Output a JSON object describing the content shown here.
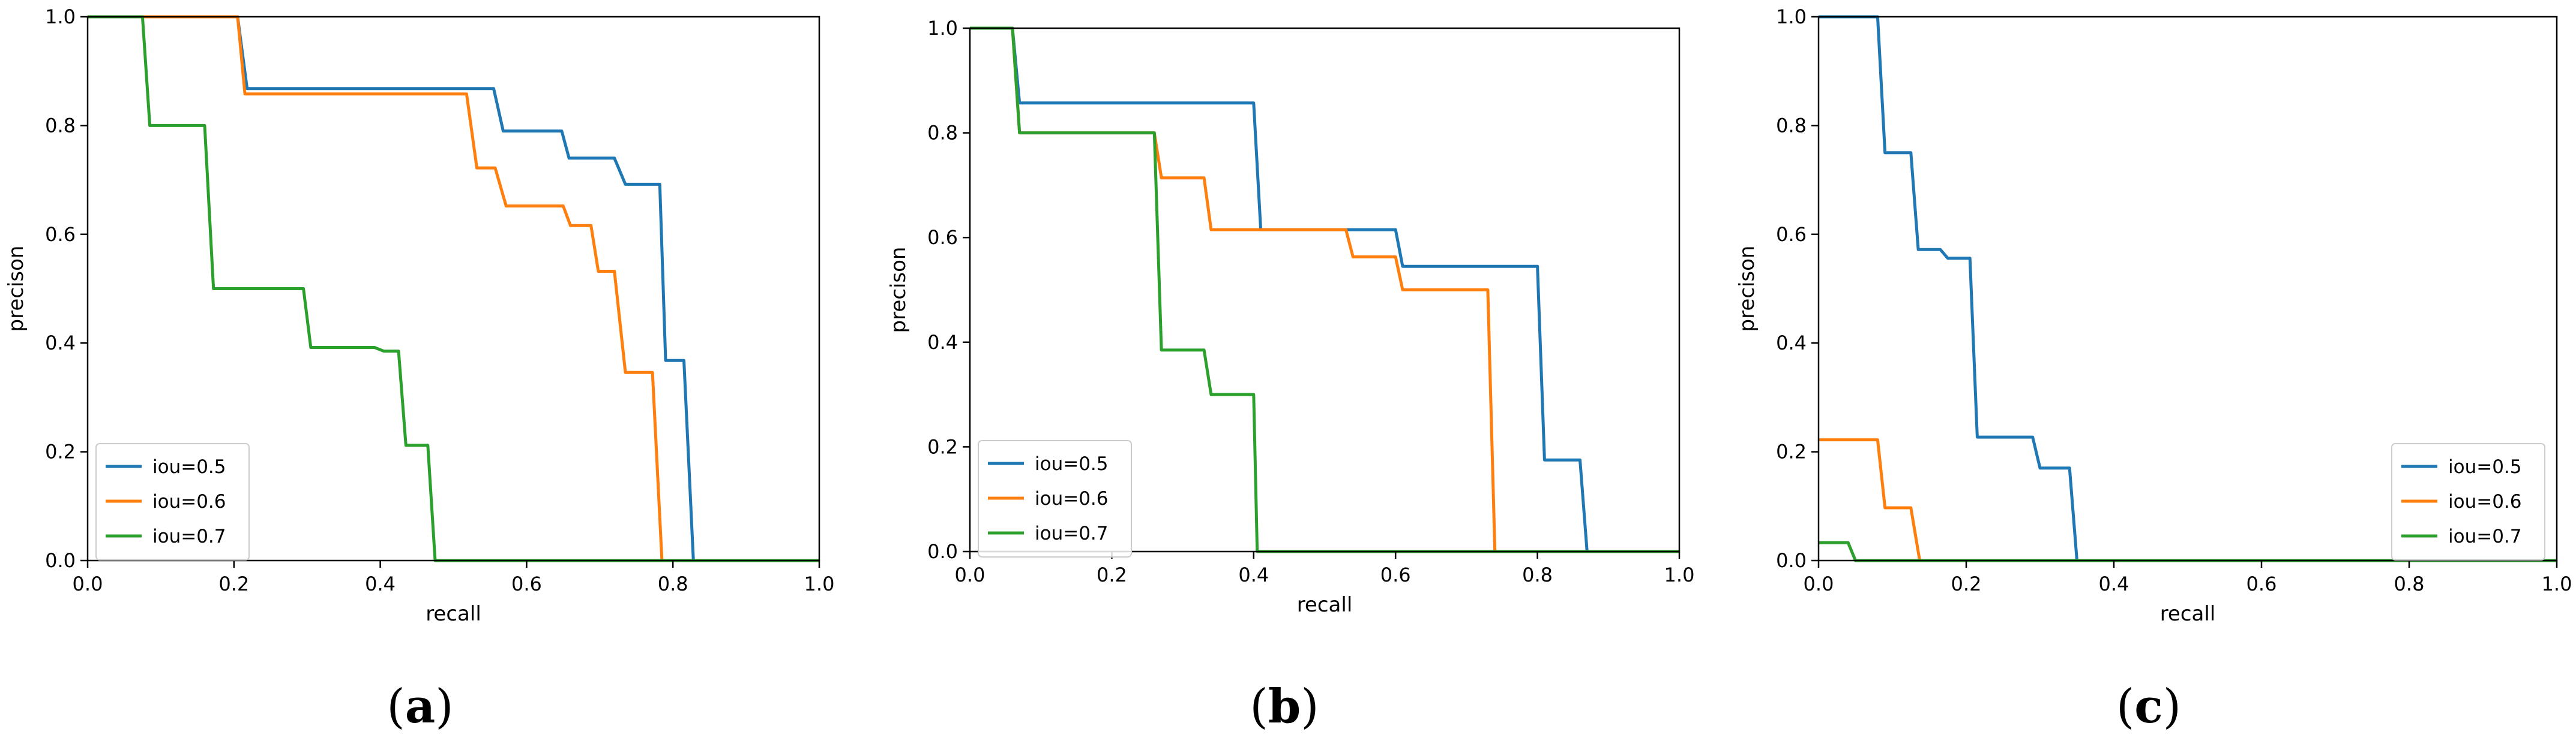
{
  "chart_data": [
    {
      "type": "line",
      "panel_label": "a",
      "xlabel": "recall",
      "ylabel": "precison",
      "xlim": [
        0,
        1
      ],
      "ylim": [
        0,
        1
      ],
      "xticks": [
        "0.0",
        "0.2",
        "0.4",
        "0.6",
        "0.8",
        "1.0"
      ],
      "yticks": [
        "0.0",
        "0.2",
        "0.4",
        "0.6",
        "0.8",
        "1.0"
      ],
      "legend_loc": "lower-left",
      "series": [
        {
          "name": "iou=0.5",
          "color": "#1f77b4",
          "points": [
            [
              0,
              1
            ],
            [
              0.205,
              1
            ],
            [
              0.218,
              0.868
            ],
            [
              0.555,
              0.868
            ],
            [
              0.568,
              0.79
            ],
            [
              0.648,
              0.79
            ],
            [
              0.658,
              0.74
            ],
            [
              0.72,
              0.74
            ],
            [
              0.735,
              0.692
            ],
            [
              0.782,
              0.692
            ],
            [
              0.79,
              0.368
            ],
            [
              0.815,
              0.368
            ],
            [
              0.828,
              0
            ],
            [
              1.0,
              0
            ]
          ]
        },
        {
          "name": "iou=0.6",
          "color": "#ff7f0e",
          "points": [
            [
              0,
              1
            ],
            [
              0.205,
              1
            ],
            [
              0.215,
              0.858
            ],
            [
              0.518,
              0.858
            ],
            [
              0.532,
              0.722
            ],
            [
              0.557,
              0.722
            ],
            [
              0.572,
              0.652
            ],
            [
              0.65,
              0.652
            ],
            [
              0.66,
              0.616
            ],
            [
              0.688,
              0.616
            ],
            [
              0.698,
              0.532
            ],
            [
              0.72,
              0.532
            ],
            [
              0.735,
              0.346
            ],
            [
              0.772,
              0.346
            ],
            [
              0.785,
              0
            ],
            [
              1.0,
              0
            ]
          ]
        },
        {
          "name": "iou=0.7",
          "color": "#2ca02c",
          "points": [
            [
              0,
              1
            ],
            [
              0.075,
              1
            ],
            [
              0.085,
              0.8
            ],
            [
              0.16,
              0.8
            ],
            [
              0.172,
              0.5
            ],
            [
              0.295,
              0.5
            ],
            [
              0.305,
              0.392
            ],
            [
              0.392,
              0.392
            ],
            [
              0.405,
              0.385
            ],
            [
              0.425,
              0.385
            ],
            [
              0.435,
              0.212
            ],
            [
              0.465,
              0.212
            ],
            [
              0.475,
              0
            ],
            [
              1.0,
              0
            ]
          ]
        }
      ]
    },
    {
      "type": "line",
      "panel_label": "b",
      "xlabel": "recall",
      "ylabel": "precison",
      "xlim": [
        0,
        1
      ],
      "ylim": [
        0,
        1
      ],
      "xticks": [
        "0.0",
        "0.2",
        "0.4",
        "0.6",
        "0.8",
        "1.0"
      ],
      "yticks": [
        "0.0",
        "0.2",
        "0.4",
        "0.6",
        "0.8",
        "1.0"
      ],
      "legend_loc": "lower-left",
      "series": [
        {
          "name": "iou=0.5",
          "color": "#1f77b4",
          "points": [
            [
              0,
              1
            ],
            [
              0.06,
              1
            ],
            [
              0.07,
              0.857
            ],
            [
              0.4,
              0.857
            ],
            [
              0.41,
              0.615
            ],
            [
              0.6,
              0.615
            ],
            [
              0.61,
              0.545
            ],
            [
              0.8,
              0.545
            ],
            [
              0.81,
              0.175
            ],
            [
              0.86,
              0.175
            ],
            [
              0.87,
              0
            ],
            [
              1.0,
              0
            ]
          ]
        },
        {
          "name": "iou=0.6",
          "color": "#ff7f0e",
          "points": [
            [
              0,
              1
            ],
            [
              0.06,
              1
            ],
            [
              0.07,
              0.8
            ],
            [
              0.26,
              0.8
            ],
            [
              0.27,
              0.714
            ],
            [
              0.33,
              0.714
            ],
            [
              0.34,
              0.615
            ],
            [
              0.53,
              0.615
            ],
            [
              0.54,
              0.563
            ],
            [
              0.6,
              0.563
            ],
            [
              0.61,
              0.5
            ],
            [
              0.73,
              0.5
            ],
            [
              0.74,
              0
            ],
            [
              1.0,
              0
            ]
          ]
        },
        {
          "name": "iou=0.7",
          "color": "#2ca02c",
          "points": [
            [
              0,
              1
            ],
            [
              0.06,
              1
            ],
            [
              0.07,
              0.8
            ],
            [
              0.26,
              0.8
            ],
            [
              0.27,
              0.385
            ],
            [
              0.33,
              0.385
            ],
            [
              0.34,
              0.3
            ],
            [
              0.4,
              0.3
            ],
            [
              0.405,
              0
            ],
            [
              1.0,
              0
            ]
          ]
        }
      ]
    },
    {
      "type": "line",
      "panel_label": "c",
      "xlabel": "recall",
      "ylabel": "precison",
      "xlim": [
        0,
        1
      ],
      "ylim": [
        0,
        1
      ],
      "xticks": [
        "0.0",
        "0.2",
        "0.4",
        "0.6",
        "0.8",
        "1.0"
      ],
      "yticks": [
        "0.0",
        "0.2",
        "0.4",
        "0.6",
        "0.8",
        "1.0"
      ],
      "legend_loc": "lower-right",
      "series": [
        {
          "name": "iou=0.5",
          "color": "#1f77b4",
          "points": [
            [
              0,
              1
            ],
            [
              0.08,
              1
            ],
            [
              0.09,
              0.75
            ],
            [
              0.125,
              0.75
            ],
            [
              0.135,
              0.572
            ],
            [
              0.165,
              0.572
            ],
            [
              0.175,
              0.556
            ],
            [
              0.205,
              0.556
            ],
            [
              0.215,
              0.227
            ],
            [
              0.29,
              0.227
            ],
            [
              0.3,
              0.17
            ],
            [
              0.34,
              0.17
            ],
            [
              0.35,
              0
            ],
            [
              1.0,
              0
            ]
          ]
        },
        {
          "name": "iou=0.6",
          "color": "#ff7f0e",
          "points": [
            [
              0,
              0.222
            ],
            [
              0.08,
              0.222
            ],
            [
              0.09,
              0.097
            ],
            [
              0.125,
              0.097
            ],
            [
              0.137,
              0
            ],
            [
              1.0,
              0
            ]
          ]
        },
        {
          "name": "iou=0.7",
          "color": "#2ca02c",
          "points": [
            [
              0,
              0.033
            ],
            [
              0.04,
              0.033
            ],
            [
              0.05,
              0
            ],
            [
              1.0,
              0
            ]
          ]
        }
      ]
    }
  ]
}
